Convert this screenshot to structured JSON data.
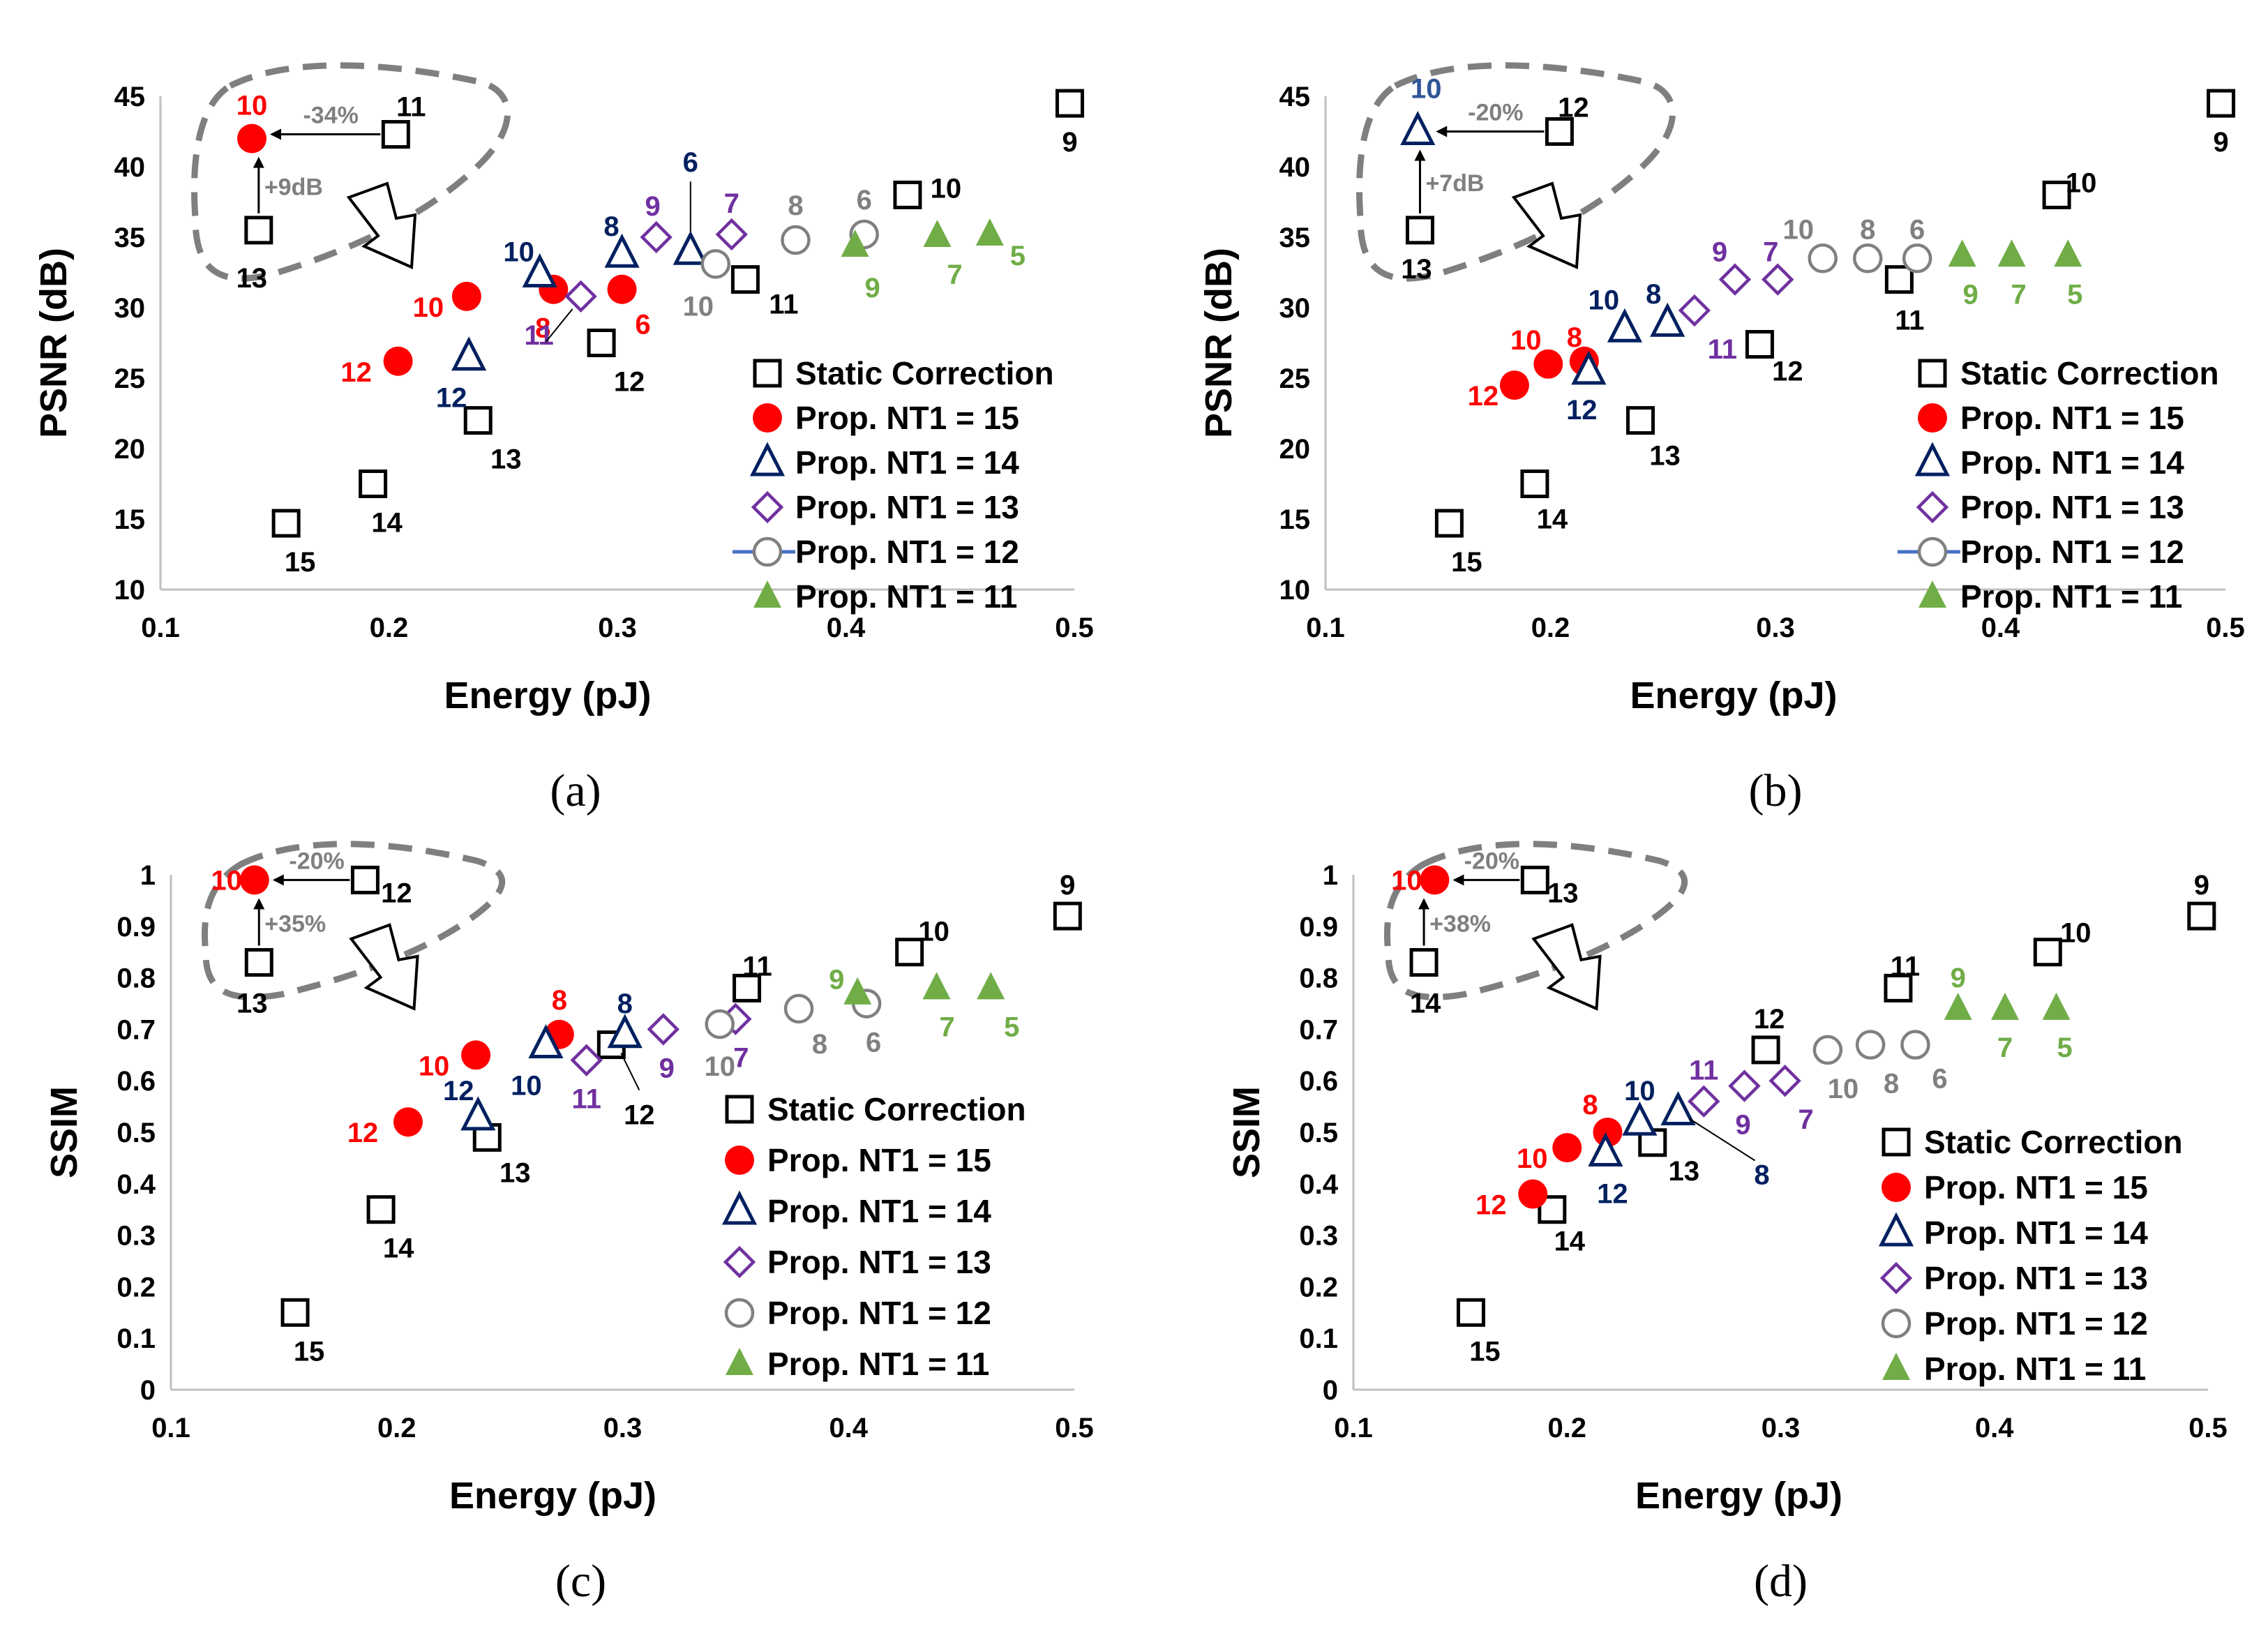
{
  "colors": {
    "static": "#000000",
    "nt15": "#ff0000",
    "nt14": "#002060",
    "nt13": "#7030a0",
    "nt12": "#808080",
    "nt11": "#70ad47",
    "annotation": "#7f7f7f",
    "nt14_highlight": "#2f5597",
    "legend_line12": "#4472c4"
  },
  "series_styles": {
    "static": {
      "marker": "square-open",
      "color_key": "static"
    },
    "nt15": {
      "marker": "circle-filled",
      "color_key": "nt15"
    },
    "nt14": {
      "marker": "triangle-open",
      "color_key": "nt14"
    },
    "nt13": {
      "marker": "diamond-open",
      "color_key": "nt13"
    },
    "nt12": {
      "marker": "circle-open",
      "color_key": "nt12"
    },
    "nt11": {
      "marker": "triangle-filled",
      "color_key": "nt11"
    }
  },
  "chart_data": [
    {
      "type": "scatter",
      "caption": "(a)",
      "xlabel": "Energy (pJ)",
      "ylabel": "PSNR (dB)",
      "xlim": [
        0.1,
        0.5
      ],
      "ylim": [
        10,
        45
      ],
      "xticks": [
        "0.1",
        "0.2",
        "0.3",
        "0.4",
        "0.5"
      ],
      "yticks": [
        "10",
        "15",
        "20",
        "25",
        "30",
        "35",
        "40",
        "45"
      ],
      "legend": [
        "Static Correction",
        "Prop. NT1 = 15",
        "Prop. NT1 = 14",
        "Prop. NT1 = 13",
        "Prop. NT1 = 12",
        "Prop. NT1 = 11"
      ],
      "annotations": {
        "arrow_h": "-34%",
        "arrow_v": "+9dB"
      },
      "series": [
        {
          "key": "static",
          "points": [
            [
              0.498,
              44.5,
              "9"
            ],
            [
              0.427,
              38,
              "10"
            ],
            [
              0.356,
              32,
              "11"
            ],
            [
              0.293,
              27.5,
              "12"
            ],
            [
              0.239,
              22,
              "13"
            ],
            [
              0.193,
              17.5,
              "14"
            ],
            [
              0.155,
              14.7,
              "15"
            ],
            [
              0.143,
              35.5,
              "13"
            ],
            [
              0.203,
              42.3,
              "11"
            ]
          ]
        },
        {
          "key": "nt15",
          "points": [
            [
              0.204,
              26.2,
              "12"
            ],
            [
              0.234,
              30.8,
              "10"
            ],
            [
              0.272,
              31.3,
              "8"
            ],
            [
              0.302,
              31.3,
              "6"
            ],
            [
              0.14,
              42,
              "10"
            ]
          ]
        },
        {
          "key": "nt14",
          "points": [
            [
              0.235,
              26.5,
              "12"
            ],
            [
              0.266,
              32.4,
              "10"
            ],
            [
              0.302,
              33.8,
              "8"
            ],
            [
              0.332,
              34,
              "6"
            ]
          ]
        },
        {
          "key": "nt13",
          "points": [
            [
              0.284,
              30.8,
              "11"
            ],
            [
              0.317,
              35,
              "9"
            ],
            [
              0.35,
              35.2,
              "7"
            ]
          ]
        },
        {
          "key": "nt12",
          "points": [
            [
              0.343,
              33.1,
              "10"
            ],
            [
              0.378,
              34.8,
              "8"
            ],
            [
              0.408,
              35.2,
              "6"
            ]
          ]
        },
        {
          "key": "nt11",
          "points": [
            [
              0.404,
              34.4,
              "9"
            ],
            [
              0.44,
              35.1,
              "7"
            ],
            [
              0.463,
              35.2,
              "5"
            ]
          ]
        }
      ]
    },
    {
      "type": "scatter",
      "caption": "(b)",
      "xlabel": "Energy (pJ)",
      "ylabel": "PSNR (dB)",
      "xlim": [
        0.1,
        0.5
      ],
      "ylim": [
        10,
        45
      ],
      "xticks": [
        "0.1",
        "0.2",
        "0.3",
        "0.4",
        "0.5"
      ],
      "yticks": [
        "10",
        "15",
        "20",
        "25",
        "30",
        "35",
        "40",
        "45"
      ],
      "legend": [
        "Static Correction",
        "Prop. NT1 = 15",
        "Prop. NT1 = 14",
        "Prop. NT1 = 13",
        "Prop. NT1 = 12",
        "Prop. NT1 = 11"
      ],
      "annotations": {
        "arrow_h": "-20%",
        "arrow_v": "+7dB"
      },
      "series": [
        {
          "key": "static",
          "points": [
            [
              0.498,
              44.5,
              "9"
            ],
            [
              0.425,
              38,
              "10"
            ],
            [
              0.355,
              32,
              "11"
            ],
            [
              0.293,
              27.4,
              "12"
            ],
            [
              0.24,
              22,
              "13"
            ],
            [
              0.193,
              17.5,
              "14"
            ],
            [
              0.155,
              14.7,
              "15"
            ],
            [
              0.142,
              35.5,
              "13"
            ],
            [
              0.204,
              42.5,
              "12"
            ]
          ]
        },
        {
          "key": "nt15",
          "points": [
            [
              0.184,
              24.5,
              "12"
            ],
            [
              0.199,
              26,
              "10"
            ],
            [
              0.215,
              26.2,
              "8"
            ]
          ]
        },
        {
          "key": "nt14",
          "points": [
            [
              0.217,
              25.5,
              "12"
            ],
            [
              0.233,
              28.5,
              "10"
            ],
            [
              0.252,
              28.9,
              "8"
            ],
            [
              0.141,
              42.5,
              "10"
            ]
          ]
        },
        {
          "key": "nt13",
          "points": [
            [
              0.264,
              29.8,
              "11"
            ],
            [
              0.282,
              32,
              "9"
            ],
            [
              0.301,
              32,
              "7"
            ]
          ]
        },
        {
          "key": "nt12",
          "points": [
            [
              0.321,
              33.5,
              "10"
            ],
            [
              0.341,
              33.5,
              "8"
            ],
            [
              0.363,
              33.5,
              "6"
            ]
          ]
        },
        {
          "key": "nt11",
          "points": [
            [
              0.383,
              33.7,
              "9"
            ],
            [
              0.405,
              33.7,
              "7"
            ],
            [
              0.43,
              33.7,
              "5"
            ]
          ]
        }
      ]
    },
    {
      "type": "scatter",
      "caption": "(c)",
      "xlabel": "Energy (pJ)",
      "ylabel": "SSIM",
      "xlim": [
        0.1,
        0.5
      ],
      "ylim": [
        0,
        1
      ],
      "xticks": [
        "0.1",
        "0.2",
        "0.3",
        "0.4",
        "0.5"
      ],
      "yticks": [
        "0",
        "0.1",
        "0.2",
        "0.3",
        "0.4",
        "0.5",
        "0.6",
        "0.7",
        "0.8",
        "0.9",
        "1"
      ],
      "legend": [
        "Static Correction",
        "Prop. NT1 = 15",
        "Prop. NT1 = 14",
        "Prop. NT1 = 13",
        "Prop. NT1 = 12",
        "Prop. NT1 = 11"
      ],
      "annotations": {
        "arrow_h": "-20%",
        "arrow_v": "+35%"
      },
      "series": [
        {
          "key": "static",
          "points": [
            [
              0.497,
              0.92,
              "9"
            ],
            [
              0.427,
              0.85,
              "10"
            ],
            [
              0.355,
              0.78,
              "11"
            ],
            [
              0.295,
              0.67,
              "12"
            ],
            [
              0.24,
              0.49,
              "13"
            ],
            [
              0.193,
              0.35,
              "14"
            ],
            [
              0.155,
              0.15,
              "15"
            ],
            [
              0.139,
              0.83,
              "13"
            ],
            [
              0.186,
              0.99,
              "12"
            ]
          ]
        },
        {
          "key": "nt15",
          "points": [
            [
              0.205,
              0.52,
              "12"
            ],
            [
              0.235,
              0.65,
              "10"
            ],
            [
              0.272,
              0.69,
              "8"
            ],
            [
              0.137,
              0.99,
              "10"
            ]
          ]
        },
        {
          "key": "nt14",
          "points": [
            [
              0.236,
              0.53,
              "12"
            ],
            [
              0.266,
              0.67,
              "10"
            ],
            [
              0.301,
              0.69,
              "8"
            ]
          ]
        },
        {
          "key": "nt13",
          "points": [
            [
              0.284,
              0.64,
              "11"
            ],
            [
              0.318,
              0.7,
              "9"
            ],
            [
              0.35,
              0.72,
              "7"
            ]
          ]
        },
        {
          "key": "nt12",
          "points": [
            [
              0.343,
              0.71,
              "10"
            ],
            [
              0.378,
              0.74,
              "8"
            ],
            [
              0.408,
              0.75,
              "6"
            ]
          ]
        },
        {
          "key": "nt11",
          "points": [
            [
              0.404,
              0.77,
              "9"
            ],
            [
              0.439,
              0.78,
              "7"
            ],
            [
              0.463,
              0.78,
              "5"
            ]
          ]
        }
      ]
    },
    {
      "type": "scatter",
      "caption": "(d)",
      "xlabel": "Energy (pJ)",
      "ylabel": "SSIM",
      "xlim": [
        0.1,
        0.5
      ],
      "ylim": [
        0,
        1
      ],
      "xticks": [
        "0.1",
        "0.2",
        "0.3",
        "0.4",
        "0.5"
      ],
      "yticks": [
        "0",
        "0.1",
        "0.2",
        "0.3",
        "0.4",
        "0.5",
        "0.6",
        "0.7",
        "0.8",
        "0.9",
        "1"
      ],
      "legend": [
        "Static Correction",
        "Prop. NT1 = 15",
        "Prop. NT1 = 14",
        "Prop. NT1 = 13",
        "Prop. NT1 = 12",
        "Prop. NT1 = 11"
      ],
      "annotations": {
        "arrow_h": "-20%",
        "arrow_v": "+38%"
      },
      "series": [
        {
          "key": "static",
          "points": [
            [
              0.497,
              0.92,
              "9"
            ],
            [
              0.425,
              0.85,
              "10"
            ],
            [
              0.355,
              0.78,
              "11"
            ],
            [
              0.293,
              0.66,
              "12"
            ],
            [
              0.24,
              0.48,
              "13"
            ],
            [
              0.193,
              0.35,
              "14"
            ],
            [
              0.155,
              0.15,
              "15"
            ],
            [
              0.133,
              0.83,
              "14"
            ],
            [
              0.185,
              0.99,
              "13"
            ]
          ]
        },
        {
          "key": "nt15",
          "points": [
            [
              0.184,
              0.38,
              "12"
            ],
            [
              0.2,
              0.47,
              "10"
            ],
            [
              0.219,
              0.5,
              "8"
            ],
            [
              0.138,
              0.99,
              "10"
            ]
          ]
        },
        {
          "key": "nt14",
          "points": [
            [
              0.218,
              0.46,
              "12"
            ],
            [
              0.234,
              0.52,
              "10"
            ],
            [
              0.252,
              0.54,
              "8"
            ]
          ]
        },
        {
          "key": "nt13",
          "points": [
            [
              0.264,
              0.56,
              "11"
            ],
            [
              0.283,
              0.59,
              "9"
            ],
            [
              0.302,
              0.6,
              "7"
            ]
          ]
        },
        {
          "key": "nt12",
          "points": [
            [
              0.322,
              0.66,
              "10"
            ],
            [
              0.342,
              0.67,
              "8"
            ],
            [
              0.363,
              0.67,
              "6"
            ]
          ]
        },
        {
          "key": "nt11",
          "points": [
            [
              0.383,
              0.74,
              "9"
            ],
            [
              0.405,
              0.74,
              "7"
            ],
            [
              0.429,
              0.74,
              "5"
            ]
          ]
        }
      ]
    }
  ]
}
